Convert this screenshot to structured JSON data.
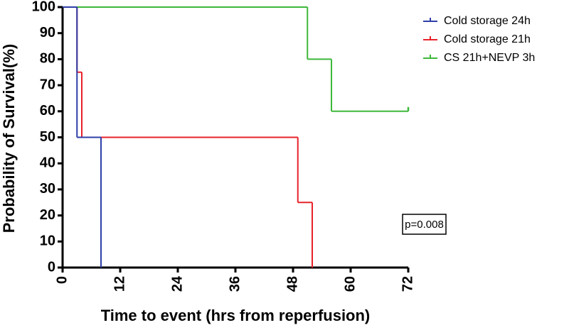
{
  "chart_data": {
    "type": "step",
    "x_label": "Time to event (hrs from reperfusion)",
    "y_label": "Probability of Survival(%)",
    "xlim": [
      0,
      72
    ],
    "xticks": [
      0,
      12,
      24,
      36,
      48,
      60,
      72
    ],
    "ylim": [
      0,
      100
    ],
    "yticks": [
      0,
      10,
      20,
      30,
      40,
      50,
      60,
      70,
      80,
      90,
      100
    ],
    "series": [
      {
        "name": "Cold storage 24h",
        "color": "#2e3fa8",
        "x": [
          0,
          3,
          8
        ],
        "values": [
          100,
          50,
          0
        ]
      },
      {
        "name": "Cold storage 21h",
        "color": "#e8222a",
        "x": [
          0,
          3,
          4,
          49,
          52
        ],
        "values": [
          100,
          75,
          50,
          25,
          0
        ]
      },
      {
        "name": "CS 21h+NEVP 3h",
        "color": "#3db83a",
        "x": [
          0,
          51,
          56,
          72
        ],
        "values": [
          100,
          80,
          60,
          60
        ]
      }
    ],
    "annotation": "p=0.008"
  }
}
